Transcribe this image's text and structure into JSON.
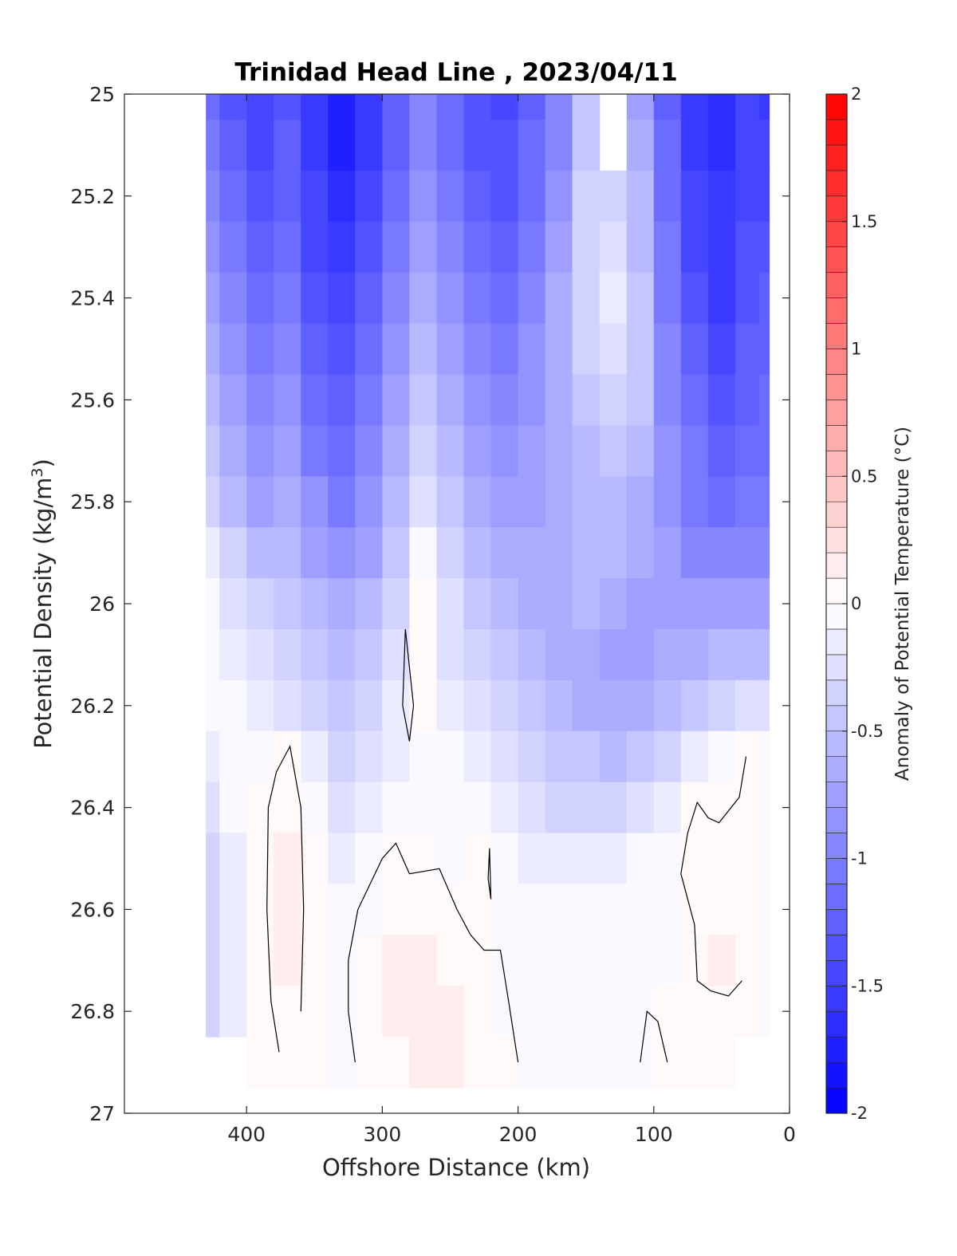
{
  "chart_data": {
    "type": "heatmap",
    "subtype": "filled-contour-section",
    "title": "Trinidad Head Line , 2023/04/11",
    "xlabel": "Offshore Distance (km)",
    "ylabel_main": "Potential Density (kg/m",
    "ylabel_sup": "3",
    "ylabel_close": ")",
    "xlim": [
      490,
      0
    ],
    "x_reversed": true,
    "ylim": [
      25,
      27
    ],
    "y_reversed": true,
    "x_ticks": [
      400,
      300,
      200,
      100,
      0
    ],
    "x_tick_labels": [
      "400",
      "300",
      "200",
      "100",
      "0"
    ],
    "y_ticks": [
      25,
      25.2,
      25.4,
      25.6,
      25.8,
      26,
      26.2,
      26.4,
      26.6,
      26.8,
      27
    ],
    "y_tick_labels": [
      "25",
      "25.2",
      "25.4",
      "25.6",
      "25.8",
      "26",
      "26.2",
      "26.4",
      "26.6",
      "26.8",
      "27"
    ],
    "colorbar": {
      "label": "Anomaly of Potential Temperature (°C)",
      "clim": [
        -2,
        2
      ],
      "levels_step": 0.1,
      "ticks": [
        2,
        1.5,
        1,
        0.5,
        0,
        -0.5,
        -1,
        -1.5,
        -2
      ],
      "tick_labels": [
        "2",
        "1.5",
        "1",
        "0.5",
        "0",
        "-0.5",
        "-1",
        "-1.5",
        "-2"
      ],
      "colormap": "blue-white-red",
      "low_color": "#0000ff",
      "mid_color": "#ffffff",
      "high_color": "#ff0000"
    },
    "columns_distance_km": [
      430,
      410,
      390,
      370,
      350,
      330,
      310,
      290,
      270,
      250,
      230,
      210,
      190,
      170,
      150,
      130,
      110,
      90,
      70,
      50,
      30,
      15
    ],
    "rows_density": [
      25,
      25.1,
      25.2,
      25.3,
      25.4,
      25.5,
      25.6,
      25.7,
      25.8,
      25.9,
      26,
      26.1,
      26.2,
      26.3,
      26.4,
      26.5,
      26.6,
      26.7,
      26.8,
      26.9
    ],
    "anomaly_grid": [
      [
        -1.2,
        -1.4,
        -1.5,
        -1.4,
        -1.6,
        -1.8,
        -1.6,
        -1.3,
        -1.0,
        -1.2,
        -1.4,
        -1.5,
        -1.3,
        -1.0,
        -0.5,
        null,
        -0.8,
        -1.3,
        -1.6,
        -1.7,
        -1.5,
        -1.6
      ],
      [
        -1.1,
        -1.3,
        -1.5,
        -1.3,
        -1.6,
        -1.8,
        -1.6,
        -1.3,
        -1.0,
        -1.2,
        -1.4,
        -1.4,
        -1.2,
        -1.0,
        -0.5,
        null,
        -0.7,
        -1.2,
        -1.6,
        -1.7,
        -1.5,
        -1.5
      ],
      [
        -1.0,
        -1.2,
        -1.4,
        -1.3,
        -1.5,
        -1.7,
        -1.5,
        -1.2,
        -0.9,
        -1.1,
        -1.3,
        -1.4,
        -1.2,
        -0.9,
        -0.4,
        -0.4,
        -0.6,
        -1.2,
        -1.5,
        -1.6,
        -1.5,
        -1.5
      ],
      [
        -0.9,
        -1.1,
        -1.3,
        -1.2,
        -1.5,
        -1.6,
        -1.4,
        -1.1,
        -0.8,
        -1.0,
        -1.2,
        -1.3,
        -1.1,
        -0.8,
        -0.4,
        -0.3,
        -0.6,
        -1.1,
        -1.5,
        -1.6,
        -1.4,
        -1.4
      ],
      [
        -0.8,
        -1.0,
        -1.2,
        -1.1,
        -1.4,
        -1.5,
        -1.3,
        -1.0,
        -0.7,
        -0.9,
        -1.1,
        -1.2,
        -1.0,
        -0.7,
        -0.4,
        -0.2,
        -0.5,
        -1.1,
        -1.4,
        -1.6,
        -1.4,
        -1.3
      ],
      [
        -0.7,
        -0.9,
        -1.1,
        -1.0,
        -1.3,
        -1.4,
        -1.2,
        -0.9,
        -0.6,
        -0.8,
        -1.0,
        -1.1,
        -0.9,
        -0.7,
        -0.4,
        -0.3,
        -0.5,
        -1.0,
        -1.3,
        -1.5,
        -1.3,
        -1.3
      ],
      [
        -0.6,
        -0.8,
        -1.0,
        -0.9,
        -1.2,
        -1.3,
        -1.1,
        -0.8,
        -0.5,
        -0.7,
        -0.9,
        -1.0,
        -0.9,
        -0.7,
        -0.5,
        -0.4,
        -0.5,
        -1.0,
        -1.2,
        -1.4,
        -1.3,
        -1.2
      ],
      [
        -0.5,
        -0.7,
        -0.9,
        -0.8,
        -1.1,
        -1.2,
        -1.0,
        -0.7,
        -0.4,
        -0.6,
        -0.8,
        -0.9,
        -0.8,
        -0.7,
        -0.6,
        -0.5,
        -0.6,
        -0.9,
        -1.1,
        -1.3,
        -1.2,
        -1.2
      ],
      [
        -0.4,
        -0.6,
        -0.8,
        -0.7,
        -0.9,
        -1.1,
        -0.9,
        -0.6,
        -0.3,
        -0.5,
        -0.7,
        -0.8,
        -0.8,
        -0.7,
        -0.6,
        -0.6,
        -0.7,
        -0.9,
        -1.1,
        -1.2,
        -1.1,
        -1.1
      ],
      [
        -0.2,
        -0.4,
        -0.6,
        -0.6,
        -0.8,
        -0.9,
        -0.8,
        -0.5,
        -0.1,
        -0.4,
        -0.6,
        -0.7,
        -0.7,
        -0.7,
        -0.6,
        -0.6,
        -0.7,
        -0.8,
        -1.0,
        -1.0,
        -1.0,
        -1.0
      ],
      [
        -0.1,
        -0.3,
        -0.4,
        -0.5,
        -0.6,
        -0.7,
        -0.6,
        -0.4,
        0.0,
        -0.3,
        -0.5,
        -0.6,
        -0.7,
        -0.7,
        -0.6,
        -0.7,
        -0.8,
        -0.8,
        -0.8,
        -0.8,
        -0.8,
        -0.8
      ],
      [
        -0.1,
        -0.2,
        -0.3,
        -0.4,
        -0.5,
        -0.6,
        -0.5,
        -0.3,
        0.05,
        -0.3,
        -0.4,
        -0.5,
        -0.6,
        -0.7,
        -0.7,
        -0.8,
        -0.8,
        -0.7,
        -0.7,
        -0.6,
        -0.6,
        -0.6
      ],
      [
        -0.1,
        -0.1,
        -0.2,
        -0.3,
        -0.4,
        -0.5,
        -0.4,
        -0.2,
        0.02,
        -0.2,
        -0.3,
        -0.4,
        -0.5,
        -0.6,
        -0.7,
        -0.7,
        -0.7,
        -0.6,
        -0.5,
        -0.4,
        -0.3,
        -0.3
      ],
      [
        -0.2,
        -0.1,
        -0.1,
        0.0,
        -0.2,
        -0.4,
        -0.3,
        -0.2,
        -0.1,
        -0.1,
        -0.2,
        -0.3,
        -0.4,
        -0.5,
        -0.5,
        -0.6,
        -0.5,
        -0.4,
        -0.2,
        -0.1,
        0.0,
        -0.1
      ],
      [
        -0.3,
        -0.1,
        0.0,
        0.05,
        -0.1,
        -0.3,
        -0.2,
        -0.1,
        -0.1,
        -0.1,
        -0.1,
        -0.2,
        -0.3,
        -0.4,
        -0.4,
        -0.4,
        -0.3,
        -0.2,
        0.0,
        0.0,
        0.0,
        -0.1
      ],
      [
        -0.4,
        -0.2,
        0.0,
        0.1,
        0.0,
        -0.2,
        -0.1,
        0.0,
        0.0,
        -0.05,
        0.0,
        -0.1,
        -0.2,
        -0.2,
        -0.2,
        -0.2,
        -0.1,
        -0.1,
        0.0,
        0.0,
        0.0,
        -0.1
      ],
      [
        -0.4,
        -0.2,
        0.0,
        0.1,
        0.0,
        -0.1,
        -0.05,
        0.05,
        0.05,
        0.0,
        0.0,
        -0.05,
        -0.1,
        -0.1,
        -0.1,
        -0.1,
        -0.1,
        -0.05,
        0.0,
        0.05,
        0.0,
        -0.1
      ],
      [
        -0.4,
        -0.2,
        0.0,
        0.1,
        0.0,
        -0.1,
        0.0,
        0.1,
        0.1,
        0.05,
        0.0,
        -0.05,
        -0.1,
        -0.05,
        -0.1,
        -0.1,
        -0.1,
        -0.05,
        0.0,
        0.1,
        0.0,
        -0.1
      ],
      [
        -0.4,
        -0.2,
        0.0,
        0.05,
        0.0,
        -0.1,
        0.0,
        0.1,
        0.1,
        0.1,
        0.0,
        -0.05,
        -0.1,
        -0.1,
        -0.1,
        -0.1,
        -0.05,
        0.0,
        0.0,
        0.0,
        0.0,
        -0.1
      ],
      [
        null,
        null,
        0.0,
        0.0,
        0.0,
        -0.1,
        0.0,
        0.05,
        0.1,
        0.1,
        0.05,
        0.0,
        -0.1,
        -0.1,
        -0.1,
        -0.1,
        -0.05,
        0.0,
        0.0,
        0.0,
        null,
        null
      ]
    ],
    "zero_contours": [
      {
        "name": "zero-contour-1",
        "points": [
          [
            283,
            26.05
          ],
          [
            277,
            26.2
          ],
          [
            280,
            26.27
          ],
          [
            285,
            26.2
          ],
          [
            283,
            26.05
          ]
        ]
      },
      {
        "name": "zero-contour-2",
        "points": [
          [
            376,
            26.88
          ],
          [
            382,
            26.78
          ],
          [
            385,
            26.6
          ],
          [
            384,
            26.4
          ],
          [
            378,
            26.33
          ],
          [
            368,
            26.28
          ],
          [
            360,
            26.4
          ],
          [
            358,
            26.6
          ],
          [
            360,
            26.8
          ]
        ]
      },
      {
        "name": "zero-contour-3",
        "points": [
          [
            320,
            26.9
          ],
          [
            325,
            26.8
          ],
          [
            325,
            26.7
          ],
          [
            318,
            26.6
          ],
          [
            300,
            26.5
          ],
          [
            290,
            26.47
          ],
          [
            280,
            26.53
          ],
          [
            258,
            26.52
          ],
          [
            245,
            26.6
          ],
          [
            235,
            26.65
          ],
          [
            225,
            26.68
          ],
          [
            213,
            26.68
          ],
          [
            207,
            26.78
          ],
          [
            200,
            26.9
          ]
        ]
      },
      {
        "name": "zero-contour-4",
        "points": [
          [
            221,
            26.48
          ],
          [
            222,
            26.54
          ],
          [
            220,
            26.58
          ],
          [
            221,
            26.48
          ]
        ]
      },
      {
        "name": "zero-contour-5",
        "points": [
          [
            110,
            26.9
          ],
          [
            105,
            26.8
          ],
          [
            97,
            26.82
          ],
          [
            90,
            26.9
          ]
        ]
      },
      {
        "name": "zero-contour-6",
        "points": [
          [
            32,
            26.3
          ],
          [
            37,
            26.38
          ],
          [
            52,
            26.43
          ],
          [
            60,
            26.42
          ],
          [
            68,
            26.39
          ],
          [
            75,
            26.45
          ],
          [
            80,
            26.53
          ],
          [
            70,
            26.63
          ],
          [
            68,
            26.74
          ],
          [
            58,
            26.76
          ],
          [
            45,
            26.77
          ],
          [
            35,
            26.74
          ]
        ]
      }
    ]
  }
}
